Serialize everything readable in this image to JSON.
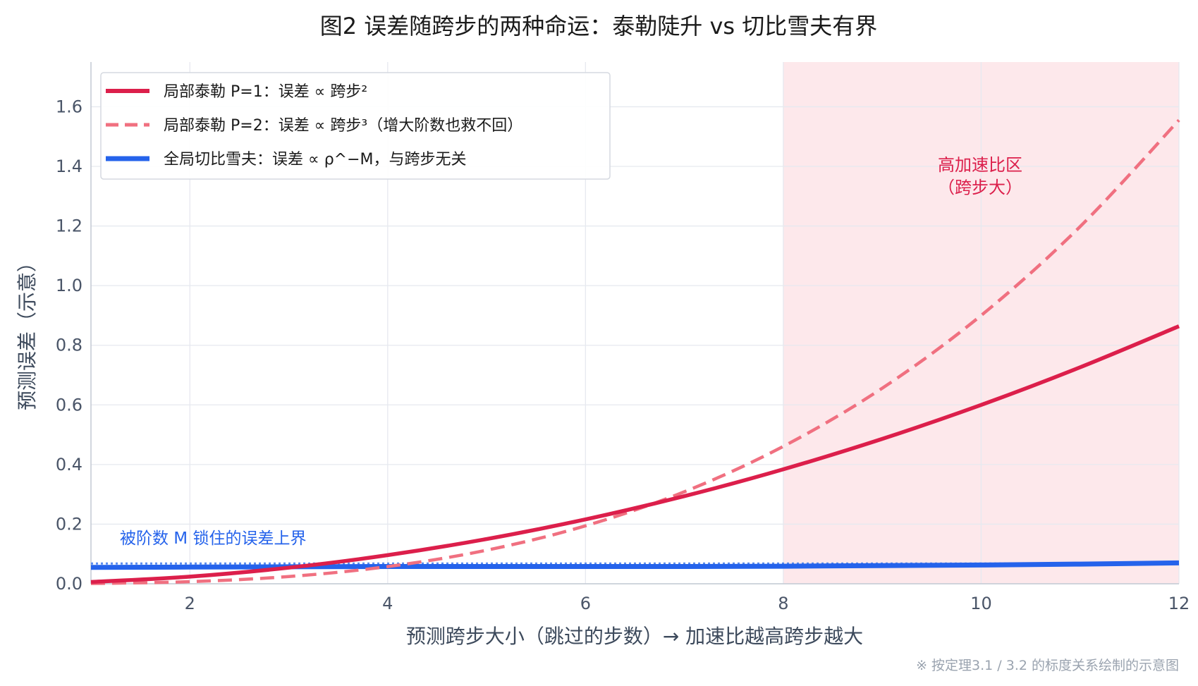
{
  "chart_data": {
    "type": "line",
    "title": "图2  误差随跨步的两种命运：泰勒陡升 vs 切比雪夫有界",
    "xlabel": "预测跨步大小（跳过的步数）→ 加速比越高跨步越大",
    "ylabel": "预测误差（示意）",
    "xlim": [
      1,
      12
    ],
    "ylim": [
      0,
      1.75
    ],
    "xticks": [
      2,
      4,
      6,
      8,
      10,
      12
    ],
    "yticks": [
      0.0,
      0.2,
      0.4,
      0.6,
      0.8,
      1.0,
      1.2,
      1.4,
      1.6
    ],
    "xtick_labels": [
      "2",
      "4",
      "6",
      "8",
      "10",
      "12"
    ],
    "ytick_labels": [
      "0.0",
      "0.2",
      "0.4",
      "0.6",
      "0.8",
      "1.0",
      "1.2",
      "1.4",
      "1.6"
    ],
    "grid": true,
    "legend_position": "top-left",
    "x": [
      1,
      2,
      3,
      4,
      5,
      6,
      7,
      8,
      9,
      10,
      11,
      12
    ],
    "series": [
      {
        "name": "局部泰勒 P=1：误差 ∝ 跨步²",
        "style": "solid",
        "color": "#dc1f4b",
        "values": [
          0.006,
          0.024,
          0.054,
          0.096,
          0.15,
          0.216,
          0.294,
          0.384,
          0.486,
          0.6,
          0.726,
          0.864
        ]
      },
      {
        "name": "局部泰勒 P=2：误差 ∝ 跨步³（增大阶数也救不回）",
        "style": "dashed",
        "color": "#f07080",
        "values": [
          0.0009,
          0.0072,
          0.0243,
          0.0576,
          0.1125,
          0.1944,
          0.3087,
          0.4608,
          0.6561,
          0.9,
          1.1979,
          1.5552
        ]
      },
      {
        "name": "全局切比雪夫：误差 ∝ ρ^−M，与跨步无关",
        "style": "solid",
        "color": "#2563eb",
        "values": [
          0.055,
          0.056,
          0.057,
          0.058,
          0.058,
          0.058,
          0.058,
          0.059,
          0.061,
          0.063,
          0.066,
          0.07
        ]
      }
    ],
    "reference_line": {
      "y": 0.068,
      "style": "dotted",
      "color": "#5b8def",
      "label": "被阶数 M 锁住的误差上界"
    },
    "shaded_region": {
      "x": [
        8,
        12
      ],
      "color": "#fde8eb",
      "label_line1": "高加速比区",
      "label_line2": "（跨步大）",
      "label_color": "#dc1f4b"
    },
    "footnote": "※ 按定理3.1 / 3.2 的标度关系绘制的示意图"
  }
}
